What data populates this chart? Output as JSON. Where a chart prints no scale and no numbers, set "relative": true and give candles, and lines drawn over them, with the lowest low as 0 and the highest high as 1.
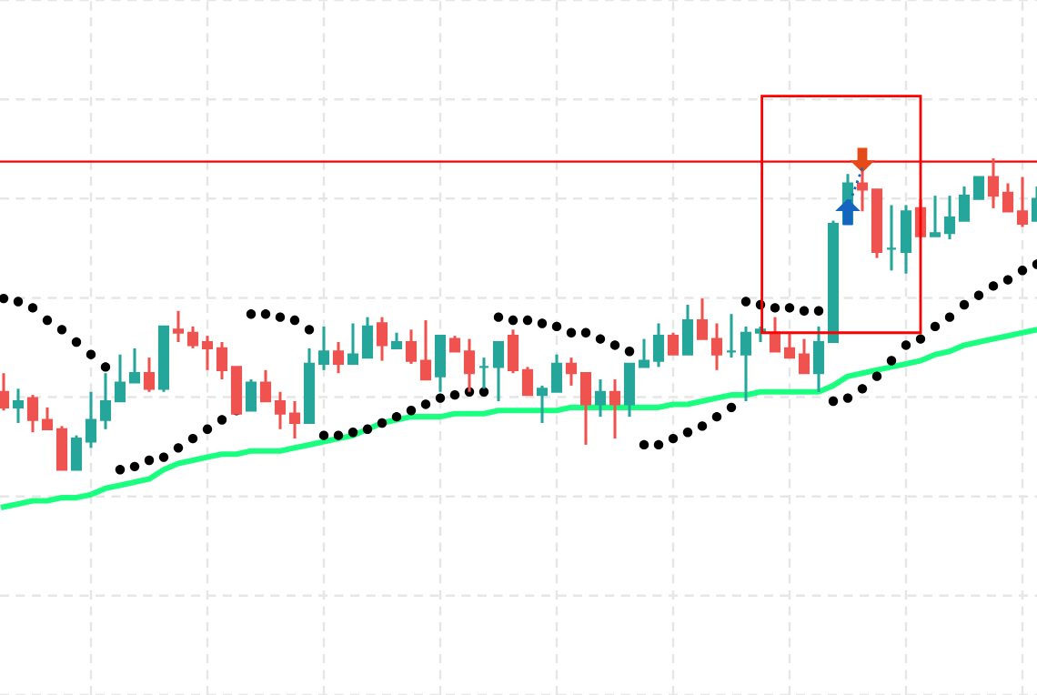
{
  "chart_data": {
    "type": "candlestick",
    "relative": true,
    "grid": true,
    "tick_labels": false,
    "categories": [
      null,
      null,
      null,
      null,
      null,
      null,
      null,
      null,
      null,
      null,
      null,
      null,
      null,
      null,
      null,
      null,
      null,
      null,
      null,
      null,
      null,
      null,
      null,
      null,
      null,
      null,
      null,
      null,
      null,
      null,
      null,
      null,
      null,
      null,
      null,
      null,
      null,
      null,
      null,
      null,
      null,
      null,
      null,
      null,
      null,
      null,
      null,
      null,
      null,
      null,
      null,
      null,
      null,
      null,
      null,
      null,
      null,
      null,
      null,
      null,
      null,
      null,
      null,
      null,
      null,
      null,
      null,
      null,
      null,
      null,
      null,
      null
    ],
    "ohlc": [
      [
        0.25,
        0.31,
        0.19,
        0.2
      ],
      [
        0.2,
        0.26,
        0.15,
        0.22
      ],
      [
        0.23,
        0.24,
        0.12,
        0.16
      ],
      [
        0.16,
        0.2,
        0.13,
        0.13
      ],
      [
        0.13,
        0.14,
        0.0,
        0.0
      ],
      [
        0.0,
        0.11,
        0.0,
        0.1
      ],
      [
        0.09,
        0.25,
        0.07,
        0.16
      ],
      [
        0.16,
        0.31,
        0.13,
        0.22
      ],
      [
        0.22,
        0.37,
        0.22,
        0.28
      ],
      [
        0.28,
        0.39,
        0.28,
        0.31
      ],
      [
        0.31,
        0.36,
        0.25,
        0.26
      ],
      [
        0.26,
        0.46,
        0.25,
        0.46
      ],
      [
        0.45,
        0.51,
        0.41,
        0.44
      ],
      [
        0.44,
        0.46,
        0.39,
        0.4
      ],
      [
        0.41,
        0.43,
        0.32,
        0.39
      ],
      [
        0.39,
        0.41,
        0.29,
        0.32
      ],
      [
        0.33,
        0.33,
        0.18,
        0.18
      ],
      [
        0.19,
        0.29,
        0.19,
        0.28
      ],
      [
        0.28,
        0.32,
        0.22,
        0.22
      ],
      [
        0.22,
        0.25,
        0.13,
        0.18
      ],
      [
        0.18,
        0.22,
        0.1,
        0.15
      ],
      [
        0.15,
        0.39,
        0.15,
        0.34
      ],
      [
        0.34,
        0.46,
        0.32,
        0.38
      ],
      [
        0.38,
        0.41,
        0.31,
        0.34
      ],
      [
        0.34,
        0.47,
        0.34,
        0.37
      ],
      [
        0.36,
        0.49,
        0.36,
        0.46
      ],
      [
        0.47,
        0.49,
        0.35,
        0.4
      ],
      [
        0.39,
        0.44,
        0.39,
        0.41
      ],
      [
        0.41,
        0.45,
        0.34,
        0.35
      ],
      [
        0.35,
        0.48,
        0.29,
        0.29
      ],
      [
        0.3,
        0.43,
        0.25,
        0.43
      ],
      [
        0.42,
        0.43,
        0.38,
        0.38
      ],
      [
        0.38,
        0.42,
        0.25,
        0.31
      ],
      [
        0.33,
        0.36,
        0.26,
        0.33
      ],
      [
        0.33,
        0.41,
        0.22,
        0.41
      ],
      [
        0.43,
        0.45,
        0.31,
        0.32
      ],
      [
        0.32,
        0.33,
        0.24,
        0.24
      ],
      [
        0.24,
        0.27,
        0.15,
        0.26
      ],
      [
        0.25,
        0.37,
        0.25,
        0.34
      ],
      [
        0.34,
        0.36,
        0.27,
        0.31
      ],
      [
        0.31,
        0.31,
        0.08,
        0.21
      ],
      [
        0.21,
        0.29,
        0.17,
        0.25
      ],
      [
        0.25,
        0.29,
        0.1,
        0.21
      ],
      [
        0.21,
        0.34,
        0.17,
        0.34
      ],
      [
        0.33,
        0.42,
        0.33,
        0.35
      ],
      [
        0.35,
        0.47,
        0.33,
        0.43
      ],
      [
        0.43,
        0.44,
        0.37,
        0.37
      ],
      [
        0.37,
        0.53,
        0.37,
        0.48
      ],
      [
        0.48,
        0.55,
        0.42,
        0.42
      ],
      [
        0.42,
        0.47,
        0.32,
        0.37
      ],
      [
        0.38,
        0.5,
        0.36,
        0.38
      ],
      [
        0.37,
        0.46,
        0.22,
        0.44
      ],
      [
        0.44,
        0.46,
        0.41,
        0.45
      ],
      [
        0.44,
        0.49,
        0.38,
        0.38
      ],
      [
        0.39,
        0.44,
        0.36,
        0.36
      ],
      [
        0.37,
        0.42,
        0.31,
        0.31
      ],
      [
        0.31,
        0.46,
        0.25,
        0.41
      ],
      [
        0.41,
        0.8,
        0.41,
        0.79
      ],
      [
        0.79,
        0.95,
        0.79,
        0.92
      ],
      [
        0.92,
        0.97,
        0.83,
        0.9
      ],
      [
        0.9,
        0.9,
        0.68,
        0.7
      ],
      [
        0.71,
        0.85,
        0.64,
        0.71
      ],
      [
        0.7,
        0.85,
        0.63,
        0.83
      ],
      [
        0.84,
        0.87,
        0.75,
        0.75
      ],
      [
        0.75,
        0.88,
        0.75,
        0.76
      ],
      [
        0.76,
        0.88,
        0.74,
        0.81
      ],
      [
        0.8,
        0.91,
        0.8,
        0.88
      ],
      [
        0.87,
        0.94,
        0.87,
        0.94
      ],
      [
        0.94,
        1.0,
        0.84,
        0.88
      ],
      [
        0.89,
        0.92,
        0.83,
        0.83
      ],
      [
        0.83,
        0.94,
        0.78,
        0.79
      ],
      [
        0.8,
        0.91,
        0.8,
        0.87
      ]
    ],
    "colors": [
      "#ef5350",
      "#26a69a",
      "#ef5350",
      "#ef5350",
      "#ef5350",
      "#26a69a",
      "#26a69a",
      "#26a69a",
      "#26a69a",
      "#26a69a",
      "#ef5350",
      "#26a69a",
      "#ef5350",
      "#ef5350",
      "#ef5350",
      "#ef5350",
      "#ef5350",
      "#26a69a",
      "#ef5350",
      "#ef5350",
      "#ef5350",
      "#26a69a",
      "#26a69a",
      "#ef5350",
      "#26a69a",
      "#26a69a",
      "#ef5350",
      "#26a69a",
      "#ef5350",
      "#ef5350",
      "#26a69a",
      "#ef5350",
      "#ef5350",
      "#26a69a",
      "#26a69a",
      "#ef5350",
      "#ef5350",
      "#26a69a",
      "#26a69a",
      "#ef5350",
      "#ef5350",
      "#26a69a",
      "#ef5350",
      "#26a69a",
      "#26a69a",
      "#26a69a",
      "#ef5350",
      "#26a69a",
      "#ef5350",
      "#ef5350",
      "#26a69a",
      "#26a69a",
      "#26a69a",
      "#ef5350",
      "#ef5350",
      "#ef5350",
      "#26a69a",
      "#26a69a",
      "#26a69a",
      "#ef5350",
      "#ef5350",
      "#26a69a",
      "#26a69a",
      "#ef5350",
      "#26a69a",
      "#26a69a",
      "#26a69a",
      "#26a69a",
      "#ef5350",
      "#ef5350",
      "#ef5350",
      "#26a69a"
    ],
    "series": [
      {
        "type": "line",
        "color": "#1aff80",
        "line_style": "solid",
        "values": [
          -0.12,
          -0.11,
          -0.1,
          -0.1,
          -0.09,
          -0.09,
          -0.08,
          -0.06,
          -0.05,
          -0.04,
          -0.03,
          0.0,
          0.02,
          0.03,
          0.04,
          0.05,
          0.05,
          0.06,
          0.06,
          0.06,
          0.07,
          0.08,
          0.09,
          0.1,
          0.11,
          0.13,
          0.15,
          0.16,
          0.17,
          0.17,
          0.17,
          0.18,
          0.18,
          0.18,
          0.19,
          0.19,
          0.19,
          0.19,
          0.19,
          0.2,
          0.2,
          0.2,
          0.2,
          0.2,
          0.2,
          0.2,
          0.21,
          0.21,
          0.22,
          0.23,
          0.24,
          0.24,
          0.25,
          0.25,
          0.25,
          0.25,
          0.25,
          0.27,
          0.3,
          0.31,
          0.32,
          0.33,
          0.34,
          0.35,
          0.37,
          0.38,
          0.4,
          0.41,
          0.42,
          0.43,
          0.44,
          0.45
        ]
      },
      {
        "type": "scatter",
        "color": "#000000",
        "marker": "circle",
        "values": [
          0.55,
          0.54,
          0.52,
          0.48,
          0.45,
          0.41,
          0.37,
          0.33,
          0.0,
          0.01,
          0.03,
          0.04,
          0.07,
          0.1,
          0.13,
          0.16,
          0.19,
          0.5,
          0.5,
          0.49,
          0.48,
          0.45,
          0.11,
          0.11,
          0.12,
          0.13,
          0.15,
          0.17,
          0.19,
          0.21,
          0.23,
          0.24,
          0.25,
          0.25,
          0.49,
          0.48,
          0.48,
          0.47,
          0.46,
          0.44,
          0.44,
          0.42,
          0.4,
          0.38,
          0.08,
          0.08,
          0.1,
          0.12,
          0.14,
          0.17,
          0.2,
          0.54,
          0.53,
          0.52,
          0.52,
          0.51,
          0.51,
          0.22,
          0.23,
          0.26,
          0.3,
          0.35,
          0.4,
          0.42,
          0.46,
          0.49,
          0.53,
          0.56,
          0.59,
          0.61,
          0.64,
          0.66
        ]
      }
    ],
    "ref_lines": [
      {
        "axis": "y",
        "value": 0.99,
        "color": "#ff0000"
      }
    ]
  }
}
